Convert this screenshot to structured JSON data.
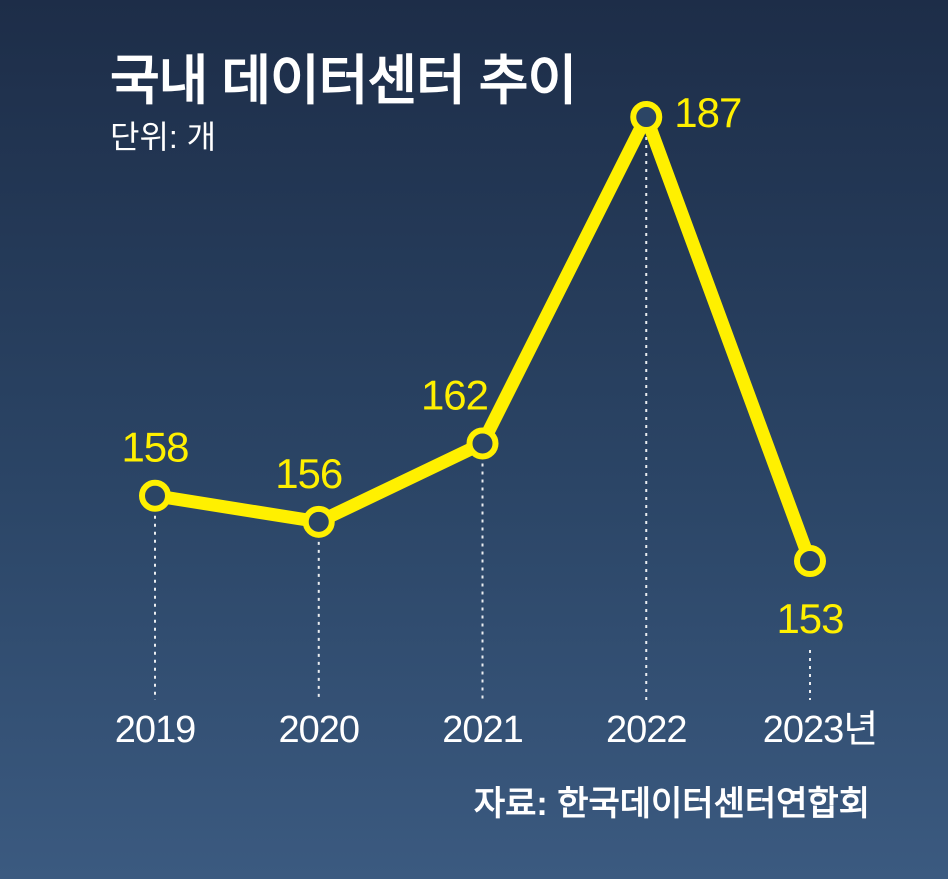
{
  "header": {
    "title": "국내 데이터센터 추이",
    "unit": "단위: 개"
  },
  "footer": {
    "source": "자료: 한국데이터센터연합회"
  },
  "colors": {
    "line": "#fff000",
    "marker_fill": "#2c4565",
    "guide": "#ffffff"
  },
  "chart_data": {
    "type": "line",
    "title": "국내 데이터센터 추이",
    "subtitle": "단위: 개",
    "categories": [
      "2019",
      "2020",
      "2021",
      "2022",
      "2023년"
    ],
    "values": [
      158,
      156,
      162,
      187,
      153
    ],
    "data_labels": [
      "158",
      "156",
      "162",
      "187",
      "153"
    ],
    "xlabel": "",
    "ylabel": "",
    "ylim": [
      150,
      190
    ],
    "grid": false,
    "legend": "none"
  }
}
